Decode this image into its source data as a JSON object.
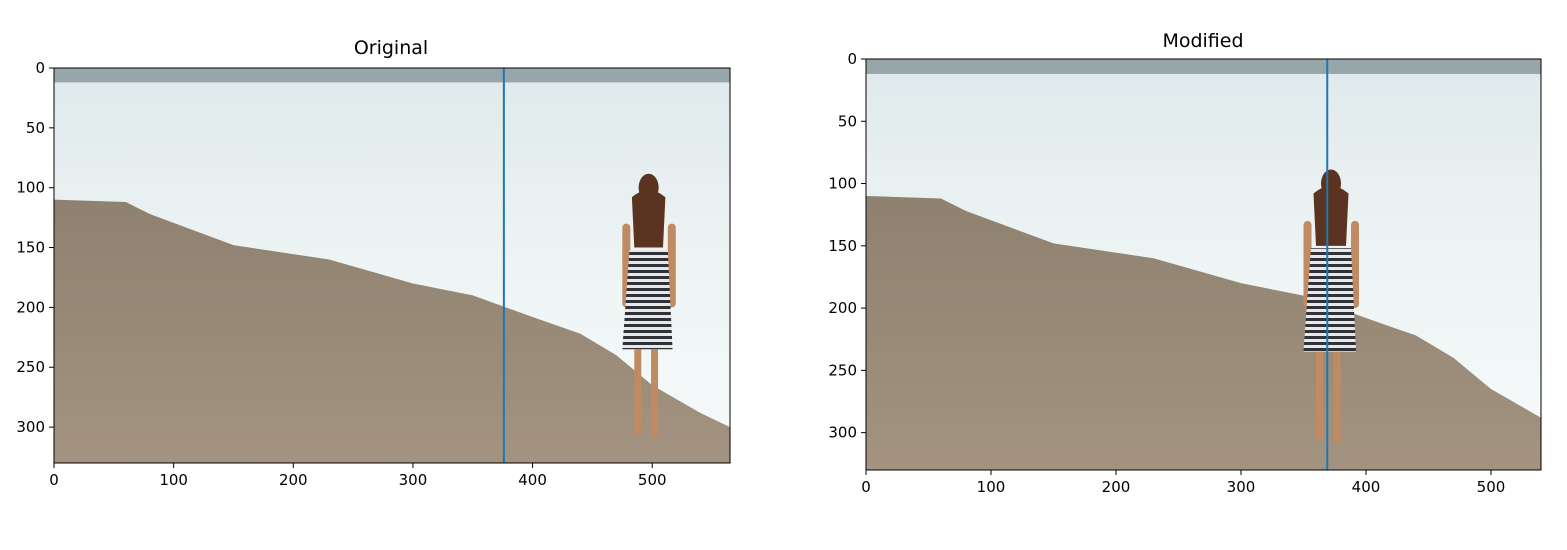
{
  "colors": {
    "marker_line": "#1f77b4",
    "sand": "#9a8a76",
    "sand_dark": "#8b7b68",
    "water": "#e6eeef",
    "water_bright": "#f4f8f8",
    "wave": "#7f8f92",
    "dress_dark": "#2f3238",
    "skin": "#c08a62",
    "hair": "#5a3420"
  },
  "chart_data": [
    {
      "type": "image",
      "title": "Original",
      "xlabel": "",
      "ylabel": "",
      "xlim": [
        0,
        565
      ],
      "ylim": [
        330,
        0
      ],
      "x_ticks": [
        0,
        100,
        200,
        300,
        400,
        500
      ],
      "y_ticks": [
        0,
        50,
        100,
        150,
        200,
        250,
        300
      ],
      "vertical_line_x": 376,
      "subject_center_x": 497
    },
    {
      "type": "image",
      "title": "Modified",
      "xlabel": "",
      "ylabel": "",
      "xlim": [
        0,
        540
      ],
      "ylim": [
        330,
        0
      ],
      "x_ticks": [
        0,
        100,
        200,
        300,
        400,
        500
      ],
      "y_ticks": [
        0,
        50,
        100,
        150,
        200,
        250,
        300
      ],
      "vertical_line_x": 369,
      "subject_center_x": 372
    }
  ]
}
